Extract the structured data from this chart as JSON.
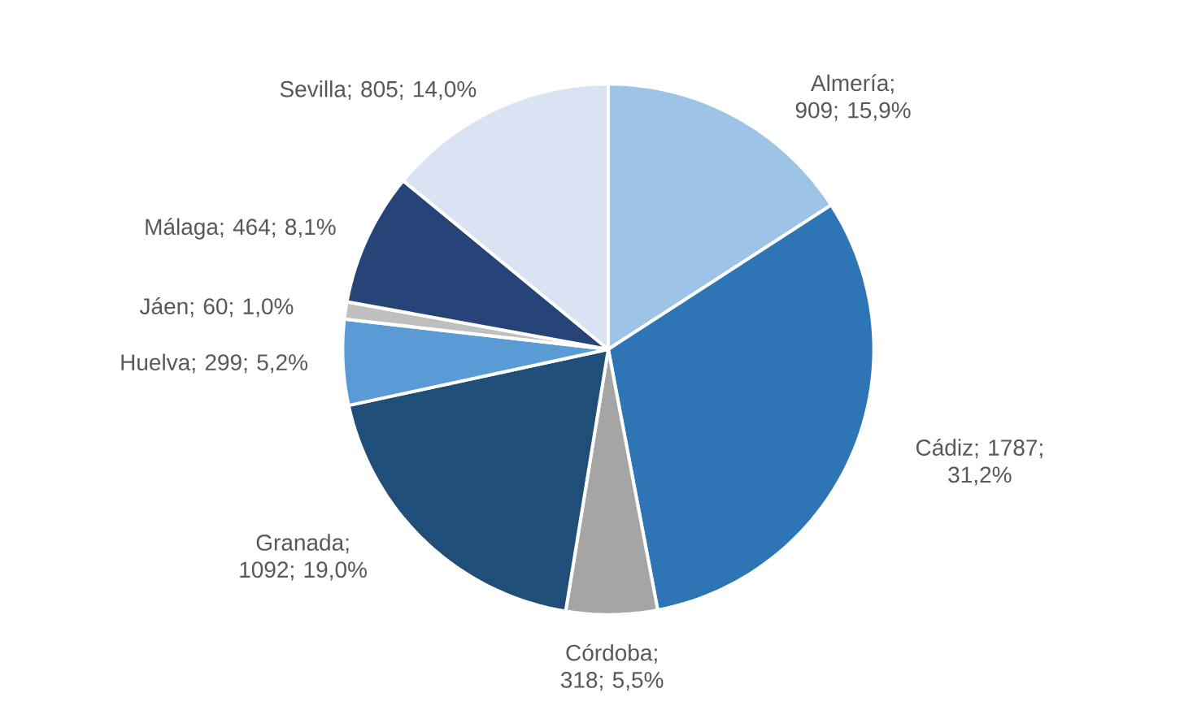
{
  "chart_data": {
    "type": "pie",
    "categories": [
      "Almería",
      "Cádiz",
      "Córdoba",
      "Granada",
      "Huelva",
      "Jáen",
      "Málaga",
      "Sevilla"
    ],
    "values": [
      909,
      1787,
      318,
      1092,
      299,
      60,
      464,
      805
    ],
    "value_labels": [
      "; 909; 15,9%",
      "; 1787; 31,2%",
      "; 318; 5,5%",
      "; 1092; 19,0%",
      "; 299; 5,2%",
      "; 60; 1,0%",
      "; 464; 8,1%",
      "; 805; 14,0%"
    ],
    "colors": [
      "#9dc3e6",
      "#2e75b6",
      "#a5a5a5",
      "#1f4e79",
      "#5b9bd5",
      "#bfbfbf",
      "#264478",
      "#dae3f3"
    ]
  }
}
